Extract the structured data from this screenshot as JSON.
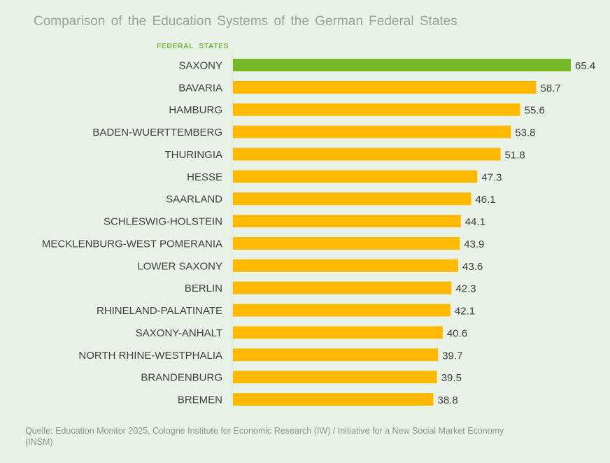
{
  "chart_data": {
    "type": "bar",
    "orientation": "horizontal",
    "title": "Comparison of the Education Systems of the German Federal States",
    "ylabel": "FEDERAL STATES",
    "categories": [
      "SAXONY",
      "BAVARIA",
      "HAMBURG",
      "BADEN-WUERTTEMBERG",
      "THURINGIA",
      "HESSE",
      "SAARLAND",
      "SCHLESWIG-HOLSTEIN",
      "MECKLENBURG-WEST POMERANIA",
      "LOWER SAXONY",
      "BERLIN",
      "RHINELAND-PALATINATE",
      "SAXONY-ANHALT",
      "NORTH RHINE-WESTPHALIA",
      "BRANDENBURG",
      "BREMEN"
    ],
    "values": [
      65.4,
      58.7,
      55.6,
      53.8,
      51.8,
      47.3,
      46.1,
      44.1,
      43.9,
      43.6,
      42.3,
      42.1,
      40.6,
      39.7,
      39.5,
      38.8
    ],
    "highlight_index": 0,
    "colors": {
      "highlight": "#76b82a",
      "default": "#ffb900"
    },
    "xlim": [
      0,
      65.4
    ],
    "grid": false,
    "data_labels": true
  },
  "source": "Quelle: Education Monitor 2025, Cologne Institute for Economic Research (IW) / Initiative for a New Social Market Economy (INSM)"
}
